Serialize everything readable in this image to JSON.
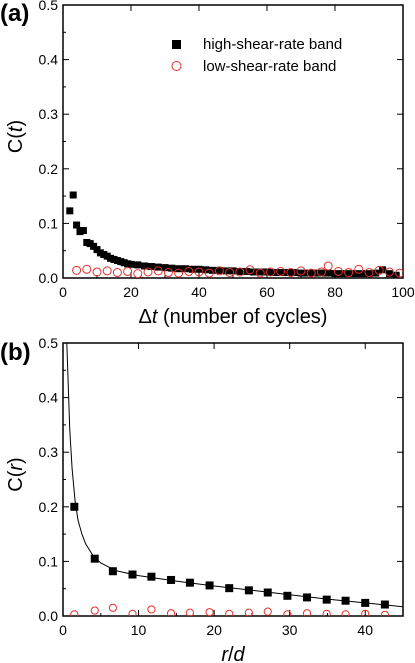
{
  "chart_data": [
    {
      "type": "scatter",
      "panel_label": "(a)",
      "title": "",
      "xlabel": "Δt (number of cycles)",
      "xlabel_parts": [
        "Δ",
        "t",
        " (number of cycles)"
      ],
      "ylabel": "C(t)",
      "ylabel_parts": [
        "C(",
        "t",
        ")"
      ],
      "xlim": [
        0,
        100
      ],
      "ylim": [
        0,
        0.5
      ],
      "xticks": [
        "0",
        "20",
        "40",
        "60",
        "80",
        "100"
      ],
      "yticks": [
        "0.0",
        "0.1",
        "0.2",
        "0.3",
        "0.4",
        "0.5"
      ],
      "grid": false,
      "legend_placement": "top-right",
      "colors": {
        "high": "#000000",
        "low": "#e8302a"
      },
      "series": [
        {
          "name": "high-shear-rate band",
          "marker": "filled-square",
          "points": [
            [
              2,
              0.123
            ],
            [
              3,
              0.152
            ],
            [
              4,
              0.097
            ],
            [
              5,
              0.085
            ],
            [
              6,
              0.087
            ],
            [
              7,
              0.065
            ],
            [
              8,
              0.063
            ],
            [
              9,
              0.058
            ],
            [
              10,
              0.052
            ],
            [
              11,
              0.046
            ],
            [
              12,
              0.043
            ],
            [
              13,
              0.04
            ],
            [
              14,
              0.036
            ],
            [
              15,
              0.034
            ],
            [
              16,
              0.032
            ],
            [
              17,
              0.03
            ],
            [
              18,
              0.028
            ],
            [
              19,
              0.026
            ],
            [
              20,
              0.025
            ],
            [
              22,
              0.024
            ],
            [
              24,
              0.022
            ],
            [
              26,
              0.021
            ],
            [
              28,
              0.02
            ],
            [
              30,
              0.019
            ],
            [
              32,
              0.018
            ],
            [
              34,
              0.017
            ],
            [
              36,
              0.017
            ],
            [
              38,
              0.016
            ],
            [
              40,
              0.016
            ],
            [
              42,
              0.015
            ],
            [
              44,
              0.014
            ],
            [
              46,
              0.014
            ],
            [
              48,
              0.013
            ],
            [
              50,
              0.013
            ],
            [
              52,
              0.012
            ],
            [
              54,
              0.012
            ],
            [
              56,
              0.011
            ],
            [
              58,
              0.011
            ],
            [
              60,
              0.011
            ],
            [
              62,
              0.01
            ],
            [
              64,
              0.01
            ],
            [
              66,
              0.01
            ],
            [
              68,
              0.01
            ],
            [
              70,
              0.009
            ],
            [
              72,
              0.009
            ],
            [
              74,
              0.009
            ],
            [
              76,
              0.009
            ],
            [
              78,
              0.009
            ],
            [
              80,
              0.008
            ],
            [
              82,
              0.008
            ],
            [
              84,
              0.008
            ],
            [
              86,
              0.008
            ],
            [
              88,
              0.008
            ],
            [
              90,
              0.008
            ],
            [
              92,
              0.009
            ],
            [
              94,
              0.015
            ],
            [
              96,
              0.008
            ],
            [
              98,
              0.005
            ]
          ]
        },
        {
          "name": "low-shear-rate band",
          "marker": "open-circle",
          "points": [
            [
              4,
              0.014
            ],
            [
              7,
              0.016
            ],
            [
              10,
              0.011
            ],
            [
              13,
              0.013
            ],
            [
              16,
              0.01
            ],
            [
              19,
              0.012
            ],
            [
              22,
              0.008
            ],
            [
              25,
              0.011
            ],
            [
              28,
              0.013
            ],
            [
              31,
              0.01
            ],
            [
              34,
              0.009
            ],
            [
              37,
              0.012
            ],
            [
              40,
              0.011
            ],
            [
              43,
              0.009
            ],
            [
              46,
              0.013
            ],
            [
              49,
              0.01
            ],
            [
              52,
              0.011
            ],
            [
              55,
              0.015
            ],
            [
              58,
              0.009
            ],
            [
              61,
              0.011
            ],
            [
              64,
              0.012
            ],
            [
              67,
              0.01
            ],
            [
              70,
              0.013
            ],
            [
              73,
              0.009
            ],
            [
              76,
              0.011
            ],
            [
              78,
              0.022
            ],
            [
              81,
              0.012
            ],
            [
              84,
              0.01
            ],
            [
              87,
              0.016
            ],
            [
              90,
              0.01
            ],
            [
              93,
              0.014
            ],
            [
              96,
              0.011
            ],
            [
              99,
              0.009
            ]
          ]
        }
      ]
    },
    {
      "type": "scatter",
      "panel_label": "(b)",
      "title": "",
      "xlabel": "r/d",
      "xlabel_parts": [
        "",
        "r",
        "/",
        "d"
      ],
      "ylabel": "C(r)",
      "ylabel_parts": [
        "C(",
        "r",
        ")"
      ],
      "xlim": [
        0,
        45
      ],
      "ylim": [
        0,
        0.5
      ],
      "xticks": [
        "0",
        "10",
        "20",
        "30",
        "40"
      ],
      "yticks": [
        "0.0",
        "0.1",
        "0.2",
        "0.3",
        "0.4",
        "0.5"
      ],
      "grid": false,
      "colors": {
        "high": "#000000",
        "low": "#e8302a"
      },
      "series": [
        {
          "name": "high-shear-rate band",
          "marker": "filled-square",
          "points": [
            [
              1.5,
              0.2
            ],
            [
              4.2,
              0.105
            ],
            [
              6.6,
              0.082
            ],
            [
              9.2,
              0.076
            ],
            [
              11.7,
              0.072
            ],
            [
              14.3,
              0.066
            ],
            [
              16.8,
              0.061
            ],
            [
              19.4,
              0.056
            ],
            [
              22.0,
              0.051
            ],
            [
              24.6,
              0.047
            ],
            [
              27.1,
              0.043
            ],
            [
              29.7,
              0.037
            ],
            [
              32.3,
              0.034
            ],
            [
              34.9,
              0.03
            ],
            [
              37.4,
              0.028
            ],
            [
              40.0,
              0.024
            ],
            [
              42.6,
              0.021
            ]
          ]
        },
        {
          "name": "low-shear-rate band",
          "marker": "open-circle",
          "points": [
            [
              1.5,
              0.003
            ],
            [
              4.2,
              0.01
            ],
            [
              6.6,
              0.015
            ],
            [
              9.2,
              0.004
            ],
            [
              11.7,
              0.012
            ],
            [
              14.3,
              0.005
            ],
            [
              16.8,
              0.006
            ],
            [
              19.4,
              0.007
            ],
            [
              22.0,
              0.004
            ],
            [
              24.6,
              0.006
            ],
            [
              27.1,
              0.008
            ],
            [
              29.7,
              0.003
            ],
            [
              32.3,
              0.005
            ],
            [
              34.9,
              0.004
            ],
            [
              37.4,
              0.003
            ],
            [
              40.0,
              0.004
            ],
            [
              42.6,
              0.002
            ]
          ]
        },
        {
          "name": "",
          "marker": "line",
          "points": [
            [
              0.5,
              0.5
            ],
            [
              0.7,
              0.42
            ],
            [
              0.9,
              0.34
            ],
            [
              1.2,
              0.27
            ],
            [
              1.6,
              0.21
            ],
            [
              2.0,
              0.175
            ],
            [
              2.5,
              0.15
            ],
            [
              3.0,
              0.132
            ],
            [
              4.0,
              0.11
            ],
            [
              5.0,
              0.097
            ],
            [
              7.0,
              0.083
            ],
            [
              10.0,
              0.074
            ],
            [
              15.0,
              0.064
            ],
            [
              20.0,
              0.055
            ],
            [
              25.0,
              0.047
            ],
            [
              30.0,
              0.039
            ],
            [
              35.0,
              0.031
            ],
            [
              40.0,
              0.024
            ],
            [
              45.0,
              0.017
            ]
          ]
        }
      ]
    }
  ]
}
